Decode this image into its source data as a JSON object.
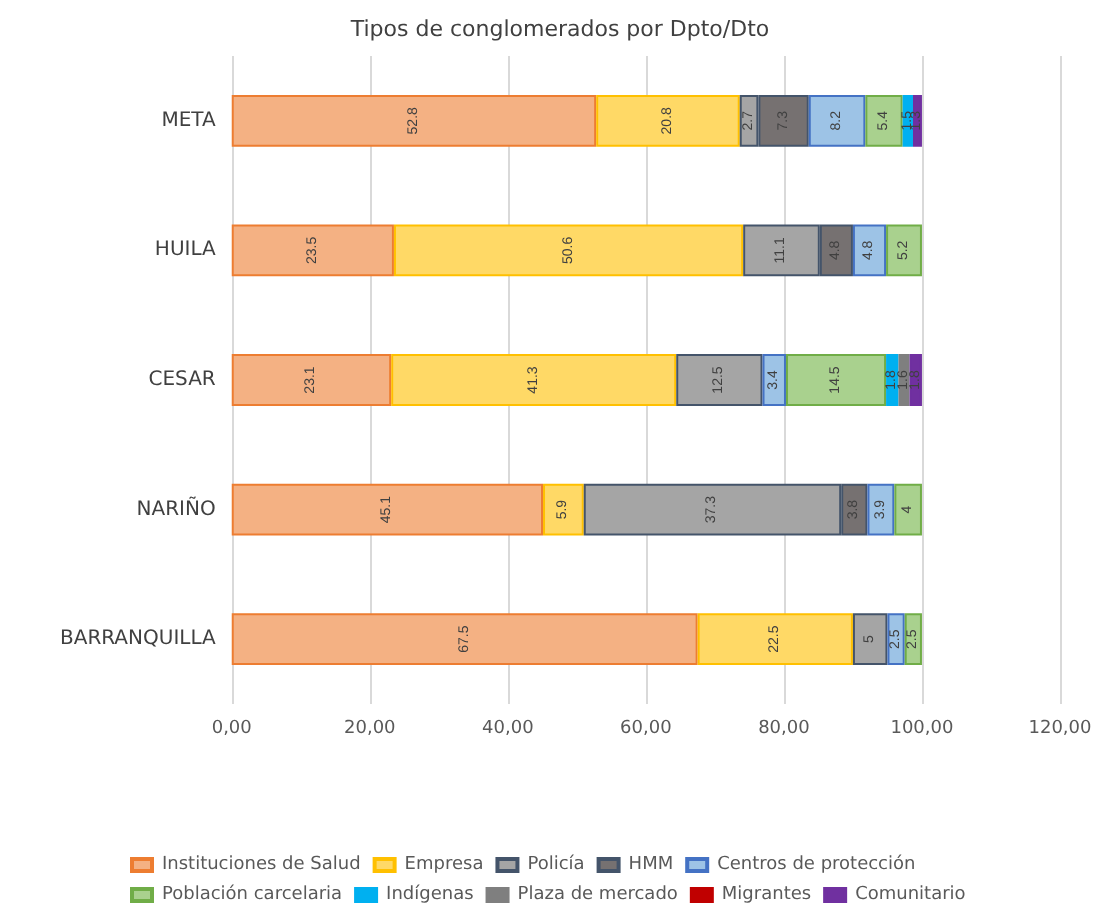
{
  "chart_data": {
    "type": "bar",
    "orientation": "horizontal",
    "stacked": true,
    "title": "Tipos de conglomerados por Dpto/Dto",
    "categories": [
      "META",
      "HUILA",
      "CESAR",
      "NARIÑO",
      "BARRANQUILLA"
    ],
    "series": [
      {
        "name": "Instituciones de Salud",
        "color": "#f4b183",
        "values": [
          52.8,
          23.5,
          23.1,
          45.1,
          67.5
        ]
      },
      {
        "name": "Empresa",
        "color": "#ffd966",
        "values": [
          20.8,
          50.6,
          41.3,
          5.9,
          22.5
        ]
      },
      {
        "name": "Policía",
        "color": "#a5a5a5",
        "values": [
          2.7,
          11.1,
          12.5,
          37.3,
          5.0
        ]
      },
      {
        "name": "HMM",
        "color": "#767171",
        "values": [
          7.3,
          4.8,
          null,
          3.8,
          null
        ]
      },
      {
        "name": "Centros de protección",
        "color": "#9dc3e6",
        "values": [
          8.2,
          4.8,
          3.4,
          3.9,
          2.5
        ]
      },
      {
        "name": "Población carcelaria",
        "color": "#a9d18e",
        "values": [
          5.4,
          5.2,
          14.5,
          4.0,
          2.5
        ]
      },
      {
        "name": "Indígenas",
        "color": "#00b0f0",
        "values": [
          1.5,
          null,
          1.8,
          null,
          null
        ]
      },
      {
        "name": "Plaza de mercado",
        "color": "#7f7f7f",
        "values": [
          null,
          null,
          1.6,
          null,
          null
        ]
      },
      {
        "name": "Migrantes",
        "color": "#c00000",
        "values": [
          null,
          null,
          null,
          null,
          null
        ]
      },
      {
        "name": "Comunitario",
        "color": "#7030a0",
        "values": [
          1.3,
          null,
          1.8,
          null,
          null
        ]
      }
    ],
    "xlim": [
      0,
      120
    ],
    "xticks": [
      {
        "value": 0,
        "label": "0,00"
      },
      {
        "value": 20,
        "label": "20,00"
      },
      {
        "value": 40,
        "label": "40,00"
      },
      {
        "value": 60,
        "label": "60,00"
      },
      {
        "value": 80,
        "label": "80,00"
      },
      {
        "value": 100,
        "label": "100,00"
      },
      {
        "value": 120,
        "label": "120,00"
      }
    ],
    "grid": "x",
    "legend": "bottom",
    "data_labels": true
  }
}
